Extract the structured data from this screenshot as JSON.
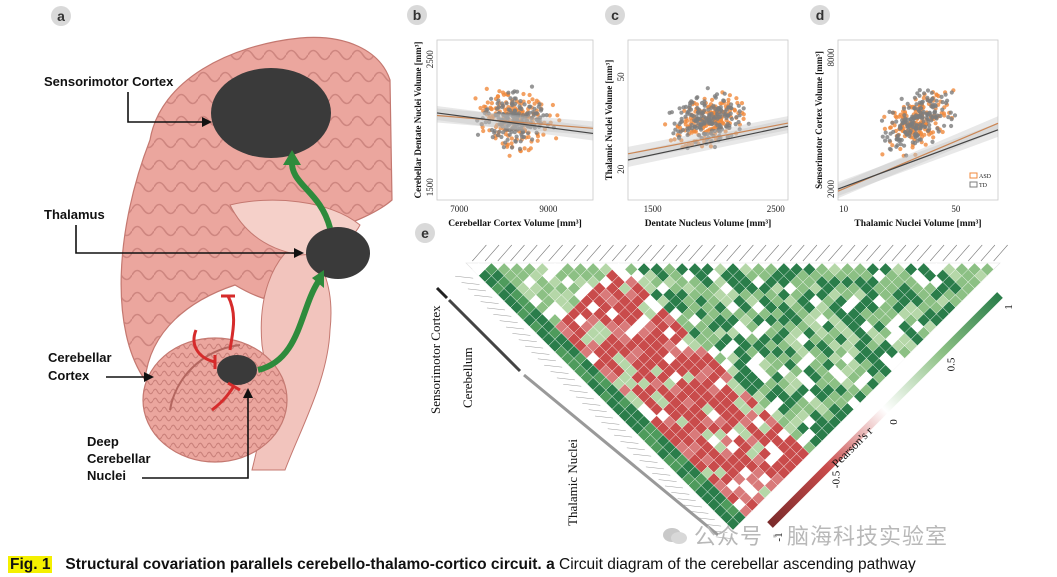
{
  "panels": {
    "a": {
      "letter": "a",
      "labels": {
        "sensorimotor": "Sensorimotor Cortex",
        "thalamus": "Thalamus",
        "cerebellar_cortex_1": "Cerebellar",
        "cerebellar_cortex_2": "Cortex",
        "dcn_1": "Deep",
        "dcn_2": "Cerebellar",
        "dcn_3": "Nuclei"
      }
    },
    "e": {
      "letter": "e",
      "group_labels": {
        "sensorimotor": "Sensorimotor Cortex",
        "cerebellum": "Cerebellum",
        "thalamic": "Thalamic Nuclei"
      },
      "colorbar": {
        "label": "Pearson's r",
        "ticks": [
          "-1",
          "-0.5",
          "0",
          "0.5",
          "1"
        ],
        "colors": [
          "#7a2b2b",
          "#c94b4b",
          "#ffffff",
          "#8cc084",
          "#2a7d4a"
        ]
      }
    }
  },
  "chart_data": [
    {
      "panel": "b",
      "type": "scatter",
      "xlabel": "Cerebellar Cortex Volume [mm³]",
      "ylabel": "Cerebellar Dentate Nuclei Volume [mm³]",
      "xticks": [
        "7000",
        "9000"
      ],
      "yticks": [
        "1500",
        "2500"
      ],
      "xlim": [
        6500,
        10000
      ],
      "ylim": [
        1400,
        2650
      ],
      "series": [
        {
          "color": "#f08a3c",
          "fit": [
            [
              6500,
              2060
            ],
            [
              10000,
              1960
            ]
          ]
        },
        {
          "color": "#7d7d7d",
          "fit": [
            [
              6500,
              2080
            ],
            [
              10000,
              1920
            ]
          ]
        }
      ]
    },
    {
      "panel": "c",
      "type": "scatter",
      "xlabel": "Dentate Nucleus Volume [mm³]",
      "ylabel": "Thalamic Nuclei Volume [mm³]",
      "xticks": [
        "1500",
        "2500"
      ],
      "yticks": [
        "20",
        "50"
      ],
      "xlim": [
        1300,
        2600
      ],
      "ylim": [
        10,
        62
      ],
      "series": [
        {
          "color": "#f08a3c",
          "fit": [
            [
              1300,
              25
            ],
            [
              2600,
              35
            ]
          ]
        },
        {
          "color": "#7d7d7d",
          "fit": [
            [
              1300,
              23
            ],
            [
              2600,
              34
            ]
          ]
        }
      ]
    },
    {
      "panel": "d",
      "type": "scatter",
      "xlabel": "Thalamic Nuclei Volume [mm³]",
      "ylabel": "Sensorimotor Cortex Volume [mm³]",
      "xticks": [
        "10",
        "50"
      ],
      "yticks": [
        "2000",
        "8000"
      ],
      "xlim": [
        8,
        65
      ],
      "ylim": [
        1500,
        8800
      ],
      "legend": [
        "ASD",
        "TD"
      ],
      "legend_position": "bottom-right",
      "series": [
        {
          "name": "ASD",
          "color": "#f08a3c",
          "fit": [
            [
              8,
              1900
            ],
            [
              65,
              5000
            ]
          ]
        },
        {
          "name": "TD",
          "color": "#7d7d7d",
          "fit": [
            [
              8,
              2000
            ],
            [
              65,
              4700
            ]
          ]
        }
      ]
    }
  ],
  "caption": {
    "fig": "Fig. 1",
    "title": "Structural covariation parallels cerebello-thalamo-cortico circuit.",
    "panel_a": "a",
    "text": "Circuit diagram of the cerebellar ascending pathway"
  },
  "watermark": "公众号 · 脑海科技实验室"
}
